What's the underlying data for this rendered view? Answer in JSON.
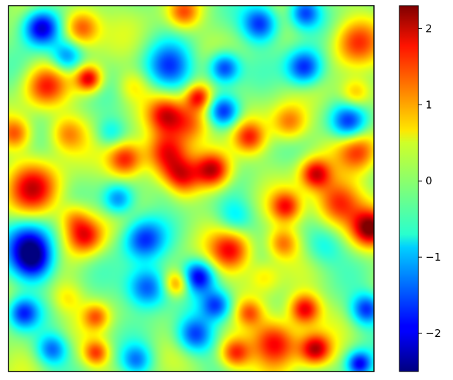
{
  "chart_data": {
    "type": "heatmap",
    "colormap": "jet",
    "grid": false,
    "colorbar": {
      "placement": "right",
      "range": [
        -2.5,
        2.3
      ],
      "ticks": [
        2,
        1,
        0,
        -1,
        -2
      ],
      "tick_labels": [
        "2",
        "1",
        "0",
        "−1",
        "−2"
      ]
    },
    "field": {
      "description_units": "value",
      "bumps": [
        {
          "x": 0.09,
          "y": 0.06,
          "v": -2.3,
          "s": 0.035
        },
        {
          "x": 0.2,
          "y": 0.06,
          "v": 1.6,
          "s": 0.035
        },
        {
          "x": 0.48,
          "y": 0.02,
          "v": 1.2,
          "s": 0.03
        },
        {
          "x": 0.69,
          "y": 0.05,
          "v": -1.8,
          "s": 0.035
        },
        {
          "x": 0.81,
          "y": 0.02,
          "v": -1.6,
          "s": 0.03
        },
        {
          "x": 0.95,
          "y": 0.1,
          "v": 1.3,
          "s": 0.045
        },
        {
          "x": 0.16,
          "y": 0.14,
          "v": -1.3,
          "s": 0.03
        },
        {
          "x": 0.1,
          "y": 0.22,
          "v": 1.4,
          "s": 0.04
        },
        {
          "x": 0.22,
          "y": 0.2,
          "v": 1.9,
          "s": 0.025
        },
        {
          "x": 0.44,
          "y": 0.17,
          "v": -1.5,
          "s": 0.045
        },
        {
          "x": 0.59,
          "y": 0.17,
          "v": -1.8,
          "s": 0.03
        },
        {
          "x": 0.81,
          "y": 0.17,
          "v": -1.9,
          "s": 0.035
        },
        {
          "x": 0.95,
          "y": 0.24,
          "v": 1.1,
          "s": 0.03
        },
        {
          "x": 0.34,
          "y": 0.22,
          "v": 0.6,
          "s": 0.03
        },
        {
          "x": 0.52,
          "y": 0.25,
          "v": 1.7,
          "s": 0.025
        },
        {
          "x": 0.43,
          "y": 0.3,
          "v": 1.5,
          "s": 0.035
        },
        {
          "x": 0.5,
          "y": 0.32,
          "v": 1.4,
          "s": 0.04
        },
        {
          "x": 0.59,
          "y": 0.29,
          "v": -1.7,
          "s": 0.03
        },
        {
          "x": 0.66,
          "y": 0.36,
          "v": 1.3,
          "s": 0.03
        },
        {
          "x": 0.77,
          "y": 0.32,
          "v": 1.3,
          "s": 0.035
        },
        {
          "x": 0.93,
          "y": 0.32,
          "v": -1.7,
          "s": 0.035
        },
        {
          "x": 0.16,
          "y": 0.35,
          "v": 1.1,
          "s": 0.035
        },
        {
          "x": 0.02,
          "y": 0.35,
          "v": 1.2,
          "s": 0.03
        },
        {
          "x": 0.32,
          "y": 0.42,
          "v": 1.8,
          "s": 0.035
        },
        {
          "x": 0.43,
          "y": 0.4,
          "v": 1.6,
          "s": 0.04
        },
        {
          "x": 0.56,
          "y": 0.45,
          "v": 2.1,
          "s": 0.035
        },
        {
          "x": 0.47,
          "y": 0.47,
          "v": 1.4,
          "s": 0.035
        },
        {
          "x": 0.84,
          "y": 0.46,
          "v": 1.8,
          "s": 0.03
        },
        {
          "x": 0.96,
          "y": 0.4,
          "v": 1.4,
          "s": 0.04
        },
        {
          "x": 0.07,
          "y": 0.5,
          "v": 1.7,
          "s": 0.05
        },
        {
          "x": 0.3,
          "y": 0.53,
          "v": -1.4,
          "s": 0.03
        },
        {
          "x": 0.44,
          "y": 0.5,
          "v": -0.4,
          "s": 0.03
        },
        {
          "x": 0.9,
          "y": 0.54,
          "v": 1.7,
          "s": 0.045
        },
        {
          "x": 0.99,
          "y": 0.61,
          "v": 2.1,
          "s": 0.035
        },
        {
          "x": 0.76,
          "y": 0.55,
          "v": 1.5,
          "s": 0.03
        },
        {
          "x": 0.18,
          "y": 0.58,
          "v": 0.9,
          "s": 0.03
        },
        {
          "x": 0.06,
          "y": 0.65,
          "v": -1.6,
          "s": 0.045
        },
        {
          "x": 0.07,
          "y": 0.7,
          "v": -1.8,
          "s": 0.04
        },
        {
          "x": 0.21,
          "y": 0.63,
          "v": 1.7,
          "s": 0.035
        },
        {
          "x": 0.37,
          "y": 0.64,
          "v": -1.6,
          "s": 0.04
        },
        {
          "x": 0.61,
          "y": 0.67,
          "v": 1.7,
          "s": 0.04
        },
        {
          "x": 0.75,
          "y": 0.65,
          "v": 1.2,
          "s": 0.03
        },
        {
          "x": 0.86,
          "y": 0.66,
          "v": -0.7,
          "s": 0.04
        },
        {
          "x": 0.52,
          "y": 0.74,
          "v": -1.9,
          "s": 0.03
        },
        {
          "x": 0.38,
          "y": 0.77,
          "v": -1.8,
          "s": 0.04
        },
        {
          "x": 0.46,
          "y": 0.76,
          "v": 1.3,
          "s": 0.025
        },
        {
          "x": 0.57,
          "y": 0.82,
          "v": -1.6,
          "s": 0.03
        },
        {
          "x": 0.81,
          "y": 0.83,
          "v": 1.9,
          "s": 0.03
        },
        {
          "x": 0.98,
          "y": 0.83,
          "v": -1.7,
          "s": 0.03
        },
        {
          "x": 0.04,
          "y": 0.84,
          "v": -1.6,
          "s": 0.03
        },
        {
          "x": 0.16,
          "y": 0.8,
          "v": 0.6,
          "s": 0.03
        },
        {
          "x": 0.24,
          "y": 0.85,
          "v": 1.1,
          "s": 0.025
        },
        {
          "x": 0.66,
          "y": 0.84,
          "v": 1.0,
          "s": 0.025
        },
        {
          "x": 0.73,
          "y": 0.92,
          "v": 1.8,
          "s": 0.045
        },
        {
          "x": 0.84,
          "y": 0.94,
          "v": 1.9,
          "s": 0.03
        },
        {
          "x": 0.51,
          "y": 0.9,
          "v": -1.7,
          "s": 0.035
        },
        {
          "x": 0.24,
          "y": 0.95,
          "v": 1.4,
          "s": 0.025
        },
        {
          "x": 0.12,
          "y": 0.94,
          "v": -1.4,
          "s": 0.03
        },
        {
          "x": 0.62,
          "y": 0.95,
          "v": 1.7,
          "s": 0.03
        },
        {
          "x": 0.96,
          "y": 0.98,
          "v": -1.9,
          "s": 0.025
        },
        {
          "x": 0.35,
          "y": 0.97,
          "v": -1.2,
          "s": 0.03
        },
        {
          "x": 0.28,
          "y": 0.35,
          "v": -0.8,
          "s": 0.03
        },
        {
          "x": 0.62,
          "y": 0.58,
          "v": -0.8,
          "s": 0.035
        },
        {
          "x": 0.7,
          "y": 0.74,
          "v": 0.6,
          "s": 0.03
        }
      ]
    }
  }
}
